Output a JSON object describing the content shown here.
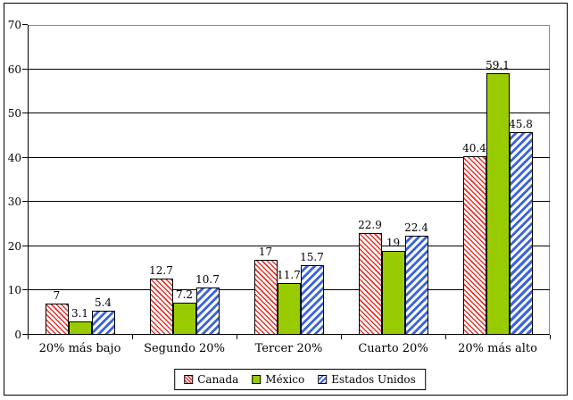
{
  "chart_data": {
    "type": "bar",
    "title": "",
    "xlabel": "",
    "ylabel": "",
    "categories": [
      "20% más bajo",
      "Segundo 20%",
      "Tercer 20%",
      "Cuarto 20%",
      "20% más alto"
    ],
    "series": [
      {
        "name": "Canada",
        "values": [
          7,
          12.7,
          17,
          22.9,
          40.4
        ],
        "pattern": "diagonal-down",
        "color": "#e8322a"
      },
      {
        "name": "México",
        "values": [
          3.1,
          7.2,
          11.7,
          19,
          59.1
        ],
        "pattern": "solid",
        "color": "#99cc00"
      },
      {
        "name": "Estados Unidos",
        "values": [
          5.4,
          10.7,
          15.7,
          22.4,
          45.8
        ],
        "pattern": "diagonal-up",
        "color": "#3a64dc"
      }
    ],
    "ylim": [
      0,
      70
    ],
    "yticks": [
      0,
      10,
      20,
      30,
      40,
      50,
      60,
      70
    ],
    "grid": true,
    "data_labels": true,
    "legend_position": "bottom",
    "colors": {
      "axis": "#000000",
      "plot_border": "#8c8c8c",
      "background": "#ffffff"
    }
  }
}
